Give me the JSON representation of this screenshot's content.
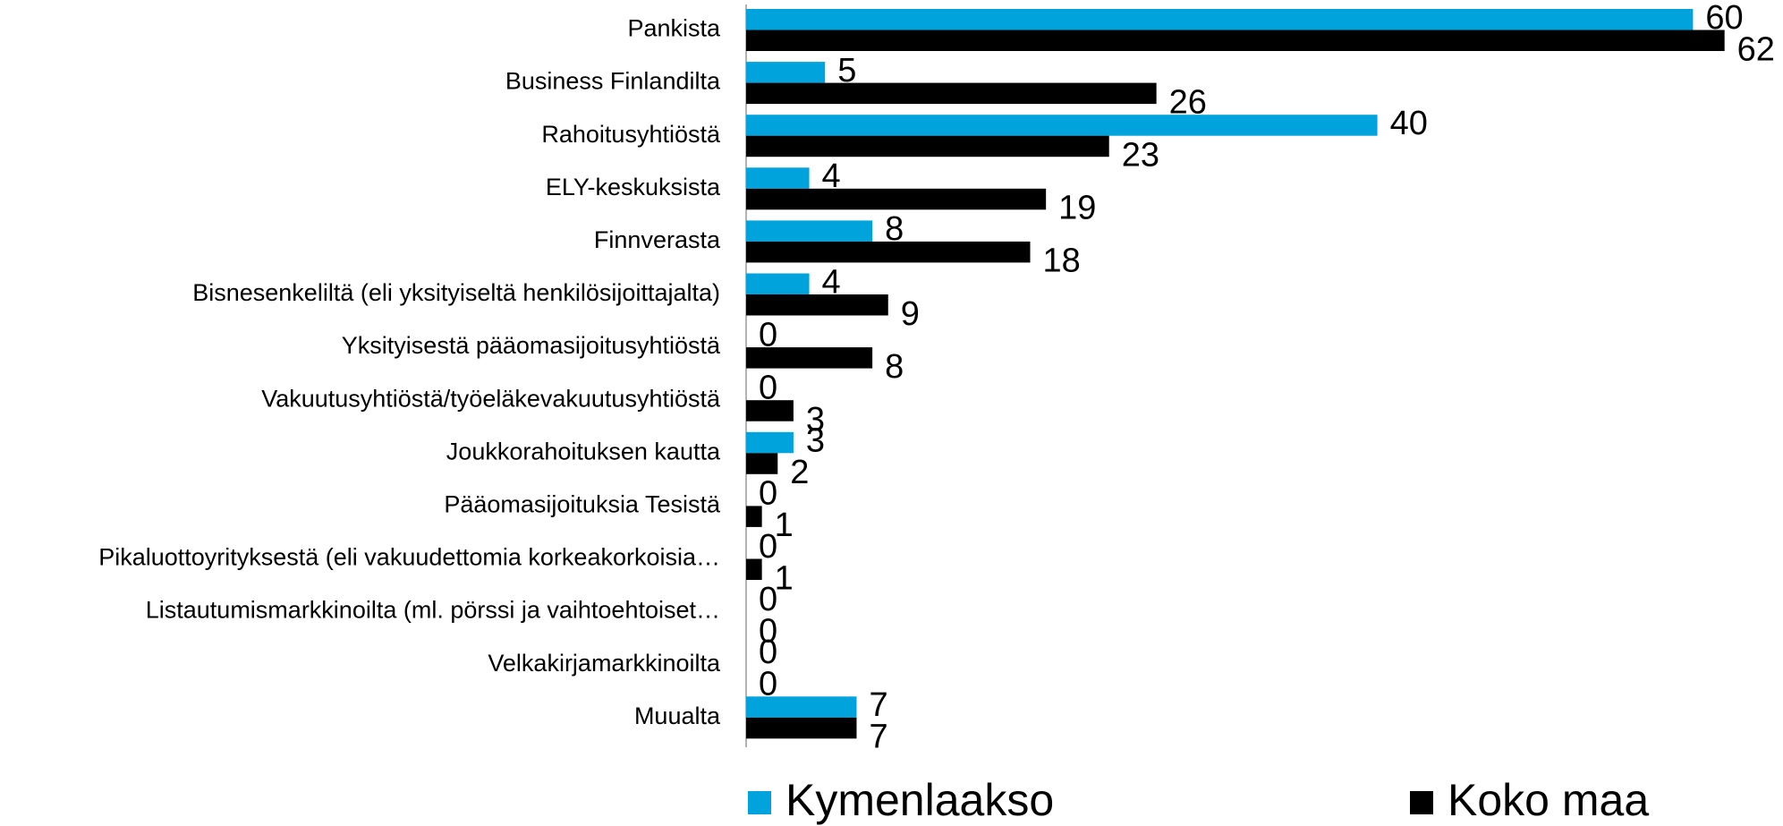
{
  "chart_data": {
    "type": "bar",
    "orientation": "horizontal",
    "categories": [
      "Pankista",
      "Business Finlandilta",
      "Rahoitusyhtiöstä",
      "ELY-keskuksista",
      "Finnverasta",
      "Bisnesenkeliltä (eli yksityiseltä henkilösijoittajalta)",
      "Yksityisestä pääomasijoitusyhtiöstä",
      "Vakuutusyhtiöstä/työeläkevakuutusyhtiöstä",
      "Joukkorahoituksen kautta",
      "Pääomasijoituksia Tesistä",
      "Pikaluottoyrityksestä (eli vakuudettomia korkeakorkoisia…",
      "Listautumismarkkinoilta (ml. pörssi ja vaihtoehtoiset…",
      "Velkakirjamarkkinoilta",
      "Muualta"
    ],
    "series": [
      {
        "name": "Kymenlaakso",
        "color": "#00a3dc",
        "values": [
          60,
          5,
          40,
          4,
          8,
          4,
          0,
          0,
          3,
          0,
          0,
          0,
          0,
          7
        ]
      },
      {
        "name": "Koko maa",
        "color": "#000000",
        "values": [
          62,
          26,
          23,
          19,
          18,
          9,
          8,
          3,
          2,
          1,
          1,
          0,
          0,
          7
        ]
      }
    ],
    "legend": "bottom"
  }
}
